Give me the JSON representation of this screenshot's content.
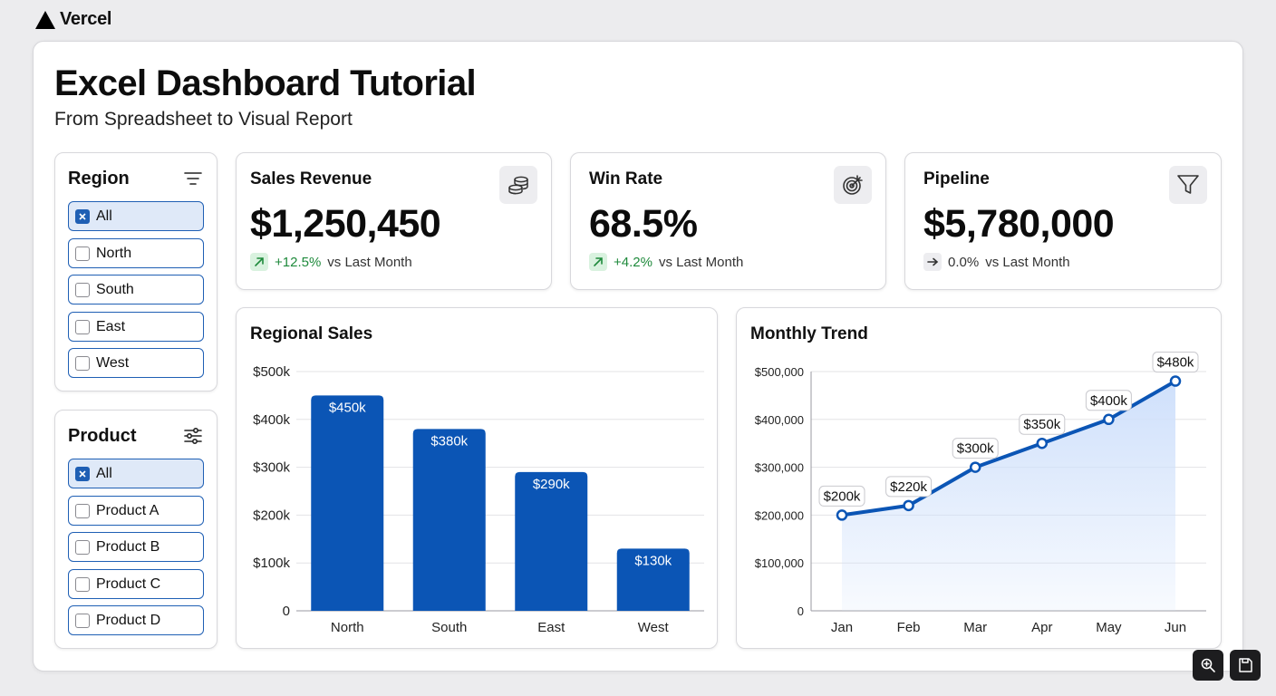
{
  "brand": {
    "name": "Vercel",
    "icon": "triangle-logo"
  },
  "header": {
    "title": "Excel Dashboard Tutorial",
    "subtitle": "From Spreadsheet to Visual Report"
  },
  "filters": {
    "region": {
      "title": "Region",
      "icon": "filter-lines-icon",
      "options": [
        {
          "label": "All",
          "checked": true
        },
        {
          "label": "North",
          "checked": false
        },
        {
          "label": "South",
          "checked": false
        },
        {
          "label": "East",
          "checked": false
        },
        {
          "label": "West",
          "checked": false
        }
      ]
    },
    "product": {
      "title": "Product",
      "icon": "sliders-icon",
      "options": [
        {
          "label": "All",
          "checked": true
        },
        {
          "label": "Product A",
          "checked": false
        },
        {
          "label": "Product B",
          "checked": false
        },
        {
          "label": "Product C",
          "checked": false
        },
        {
          "label": "Product D",
          "checked": false
        }
      ]
    }
  },
  "kpis": [
    {
      "label": "Sales Revenue",
      "value": "$1,250,450",
      "delta": "+12.5%",
      "delta_rest": "vs Last Month",
      "trend": "up",
      "icon": "coins-icon"
    },
    {
      "label": "Win Rate",
      "value": "68.5%",
      "delta": "+4.2%",
      "delta_rest": "vs Last Month",
      "trend": "up",
      "icon": "target-icon"
    },
    {
      "label": "Pipeline",
      "value": "$5,780,000",
      "delta": "0.0%",
      "delta_rest": "vs Last Month",
      "trend": "flat",
      "icon": "funnel-icon"
    }
  ],
  "colors": {
    "accent": "#0b55b5",
    "positive": "#1f8a3c",
    "area_fill": "#cfe0fb"
  },
  "chart_data": [
    {
      "type": "bar",
      "title": "Regional Sales",
      "categories": [
        "North",
        "South",
        "East",
        "West"
      ],
      "values": [
        450,
        380,
        290,
        130
      ],
      "value_labels": [
        "$450k",
        "$380k",
        "$290k",
        "$130k"
      ],
      "y_ticks": [
        0,
        100,
        200,
        300,
        400,
        500
      ],
      "y_tick_labels": [
        "0",
        "$100k",
        "$200k",
        "$300k",
        "$400k",
        "$500k"
      ],
      "ylim": [
        0,
        500
      ],
      "grid": true,
      "color": "#0b55b5"
    },
    {
      "type": "area",
      "title": "Monthly Trend",
      "categories": [
        "Jan",
        "Feb",
        "Mar",
        "Apr",
        "May",
        "Jun"
      ],
      "values": [
        200000,
        220000,
        300000,
        350000,
        400000,
        480000
      ],
      "value_labels": [
        "$200k",
        "$220k",
        "$300k",
        "$350k",
        "$400k",
        "$480k"
      ],
      "y_ticks": [
        0,
        100000,
        200000,
        300000,
        400000,
        500000
      ],
      "y_tick_labels": [
        "0",
        "$100,000",
        "$200,000",
        "$300,000",
        "$400,000",
        "$500,000"
      ],
      "ylim": [
        0,
        500000
      ],
      "grid": true,
      "color": "#0b55b5"
    }
  ],
  "toolbar": {
    "zoom_icon": "zoom-in-icon",
    "save_icon": "save-icon"
  }
}
